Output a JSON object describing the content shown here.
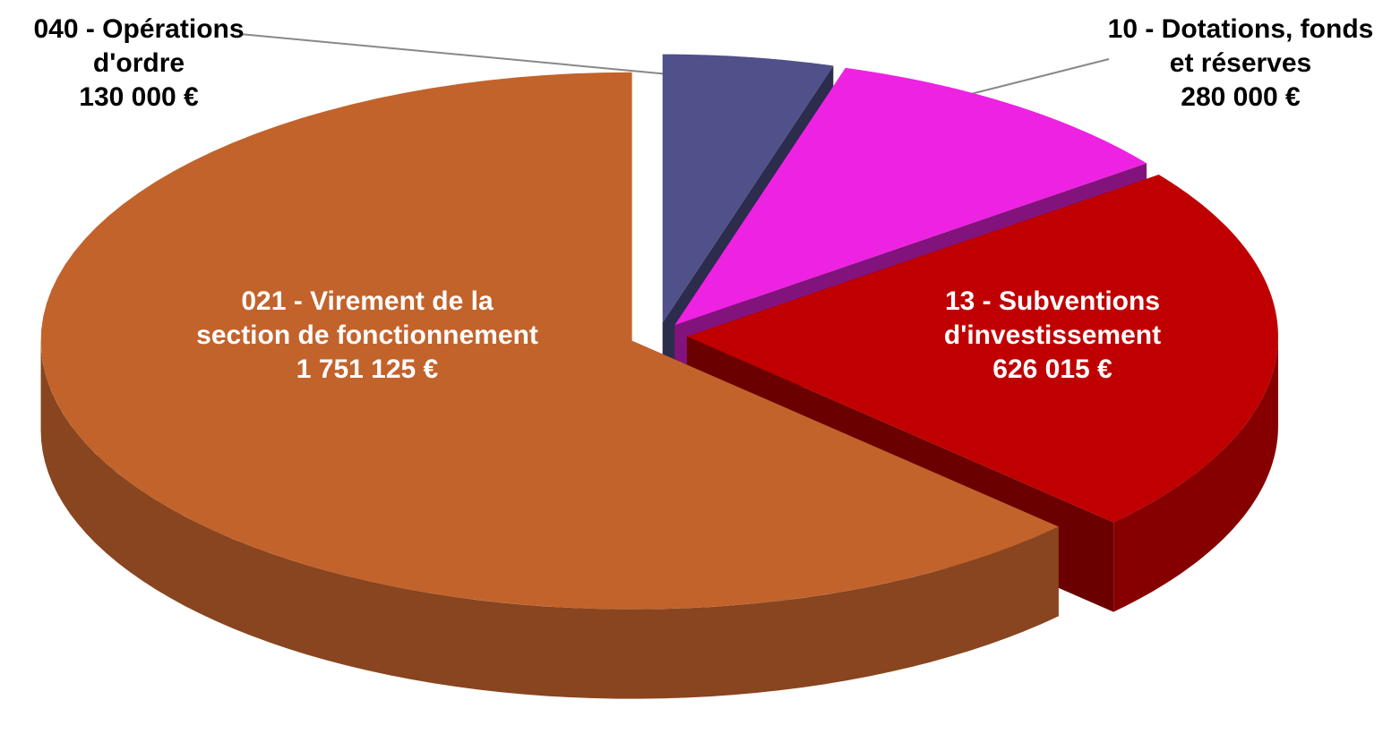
{
  "chart_data": {
    "type": "pie",
    "categories": [
      "040 - Opérations d'ordre",
      "10 - Dotations, fonds et réserves",
      "13 - Subventions d'investissement",
      "021 - Virement de la section de fonctionnement"
    ],
    "values": [
      130000,
      280000,
      626015,
      1751125
    ],
    "value_labels": [
      "130 000 €",
      "280 000 €",
      "626 015 €",
      "1 751 125 €"
    ],
    "colors": [
      "#50508a",
      "#ee22e2",
      "#c00000",
      "#c2632c"
    ]
  }
}
